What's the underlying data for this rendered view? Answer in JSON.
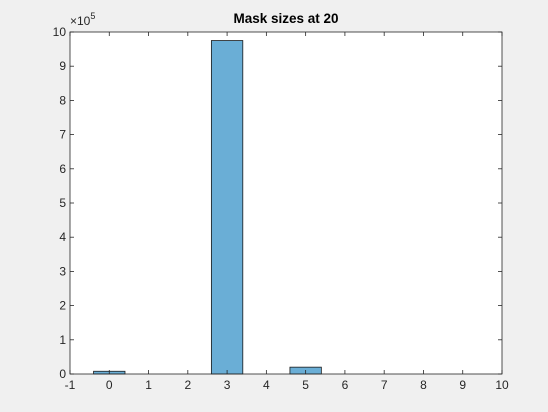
{
  "chart_data": {
    "type": "bar",
    "title": "Mask sizes at 20",
    "xlabel": "",
    "ylabel": "",
    "x": [
      0,
      3,
      5
    ],
    "values": [
      8000,
      975000,
      20000
    ],
    "bar_width": 1.0,
    "xlim": [
      -1,
      10
    ],
    "ylim": [
      0,
      1000000
    ],
    "xticks": [
      "-1",
      "0",
      "1",
      "2",
      "3",
      "4",
      "5",
      "6",
      "7",
      "8",
      "9",
      "10"
    ],
    "yticks": [
      "0",
      "1",
      "2",
      "3",
      "4",
      "5",
      "6",
      "7",
      "8",
      "9",
      "10"
    ],
    "y_exponent": {
      "base": "×10",
      "power": "5"
    },
    "grid": false,
    "legend": "none",
    "colors": {
      "bar_fill": "#6aaed6",
      "bar_edge": "#1a1a1a",
      "axes_bg": "#ffffff",
      "figure_bg": "#f0f0f0"
    }
  }
}
